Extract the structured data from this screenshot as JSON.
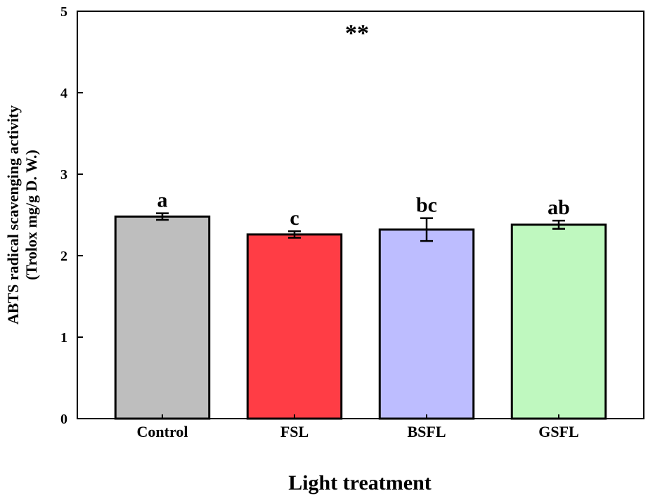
{
  "chart_data": {
    "type": "bar",
    "title": "",
    "xlabel": "Light treatment",
    "ylabel_line1": "ABTS radical scavenging activity",
    "ylabel_line2": "(Trolox mg/g D. W.)",
    "ylim": [
      0,
      5
    ],
    "yticks": [
      "0",
      "1",
      "2",
      "3",
      "4",
      "5"
    ],
    "annotation": "**",
    "categories": [
      "Control",
      "FSL",
      "BSFL",
      "GSFL"
    ],
    "values": [
      2.48,
      2.26,
      2.32,
      2.38
    ],
    "errors": [
      0.04,
      0.04,
      0.14,
      0.05
    ],
    "significance": [
      "a",
      "c",
      "bc",
      "ab"
    ],
    "colors": [
      "#bebebe",
      "#ff3d45",
      "#bdbdff",
      "#bff8bf"
    ],
    "grid": false
  }
}
